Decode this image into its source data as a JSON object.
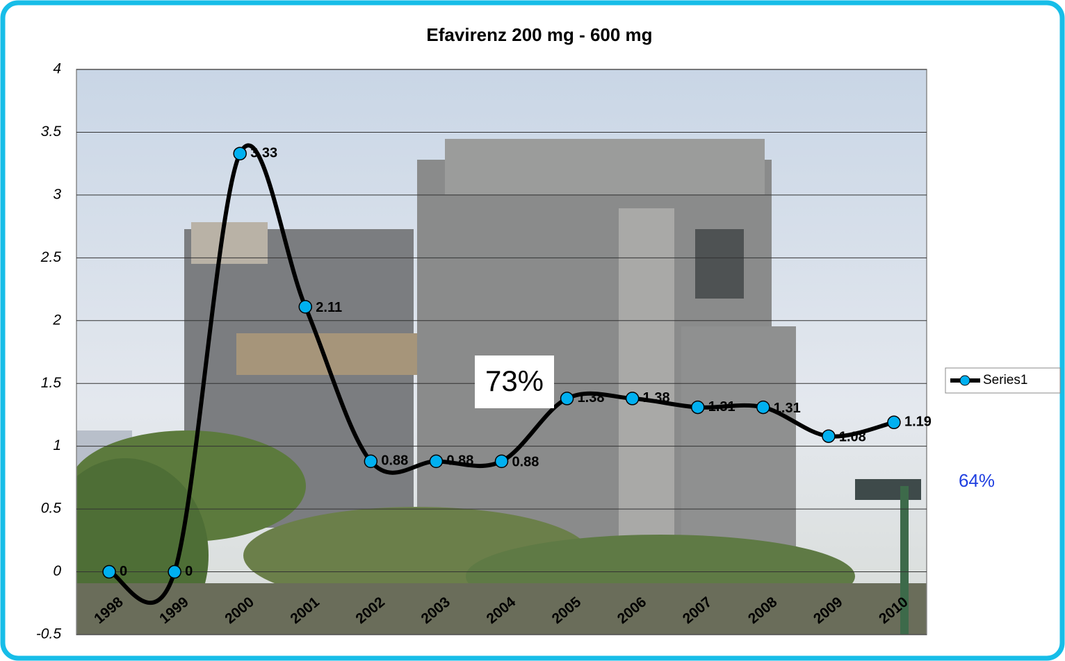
{
  "chart_data": {
    "type": "line",
    "title": "Efavirenz 200 mg - 600 mg",
    "categories": [
      "1998",
      "1999",
      "2000",
      "2001",
      "2002",
      "2003",
      "2004",
      "2005",
      "2006",
      "2007",
      "2008",
      "2009",
      "2010"
    ],
    "series": [
      {
        "name": "Series1",
        "color": "#000000",
        "marker_color": "#00b0f0",
        "values": [
          0,
          0,
          3.33,
          2.11,
          0.88,
          0.88,
          0.88,
          1.38,
          1.38,
          1.31,
          1.31,
          1.08,
          1.19
        ]
      }
    ],
    "ylim": [
      -0.5,
      4
    ],
    "yticks": [
      -0.5,
      0,
      0.5,
      1,
      1.5,
      2,
      2.5,
      3,
      3.5,
      4
    ],
    "grid": true,
    "smooth": true,
    "legend": "right",
    "annotations": [
      "73%",
      "64%"
    ]
  }
}
